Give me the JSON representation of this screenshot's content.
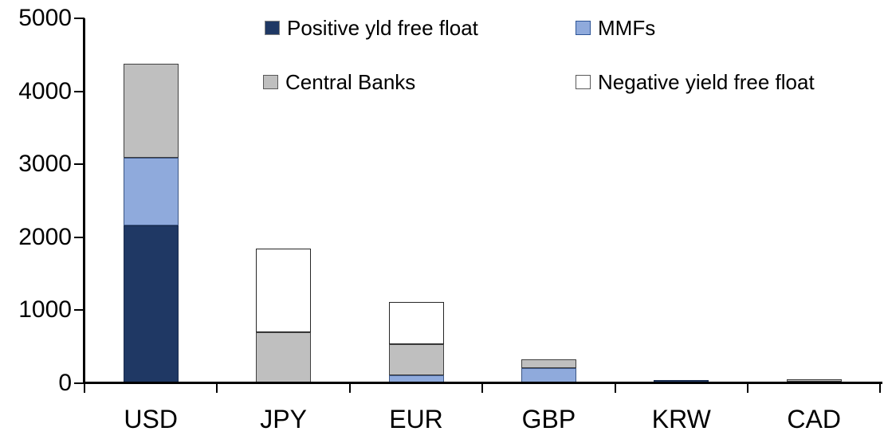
{
  "chart_data": {
    "type": "bar",
    "stacked": true,
    "title": "",
    "xlabel": "",
    "ylabel": "",
    "categories": [
      "USD",
      "JPY",
      "EUR",
      "GBP",
      "KRW",
      "CAD"
    ],
    "series": [
      {
        "name": "Positive yld free float",
        "color": "#1F3864",
        "border": "#1A2C4E",
        "swatch_border": "#808080",
        "values": [
          2160,
          0,
          0,
          0,
          45,
          25
        ]
      },
      {
        "name": "MMFs",
        "color": "#8FAADC",
        "border": "#3B5583",
        "swatch_border": "#2E5597",
        "values": [
          930,
          0,
          110,
          210,
          0,
          0
        ]
      },
      {
        "name": "Central Banks",
        "color": "#BFBFBF",
        "border": "#404040",
        "swatch_border": "#595959",
        "values": [
          1290,
          700,
          425,
          120,
          0,
          30
        ]
      },
      {
        "name": "Negative yield free float",
        "color": "#FFFFFF",
        "border": "#262626",
        "swatch_border": "#595959",
        "values": [
          0,
          1145,
          580,
          0,
          0,
          0
        ]
      }
    ],
    "totals": {
      "USD": 4380,
      "JPY": 1845,
      "EUR": 1115,
      "GBP": 330,
      "KRW": 45,
      "CAD": 55
    },
    "ylim": [
      0,
      5000
    ],
    "ytick_step": 1000,
    "yticks": [
      "0",
      "1000",
      "2000",
      "3000",
      "4000",
      "5000"
    ],
    "grid": false,
    "legend_position": "top",
    "axis_color": "#000000",
    "background_color": "#FFFFFF"
  }
}
